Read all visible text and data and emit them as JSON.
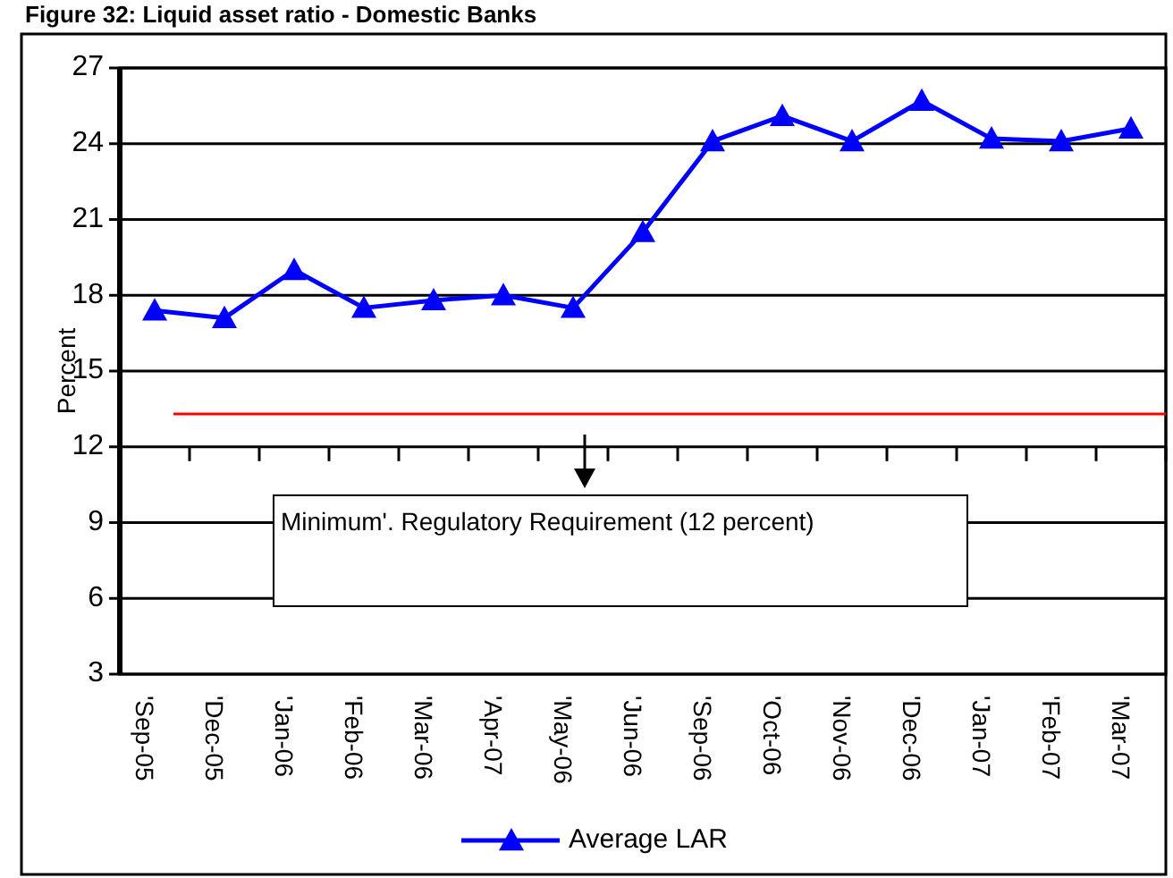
{
  "chart_data": {
    "type": "line",
    "title": "Figure 32: Liquid asset ratio - Domestic Banks",
    "ylabel": "Percent",
    "categories": [
      "'Sep-05",
      "'Dec-05",
      "'Jan-06",
      "'Feb-06",
      "'Mar-06",
      "'Apr-07",
      "'May-06",
      "'Jun-06",
      "'Sep-06",
      "'Oct-06",
      "'Nov-06",
      "'Dec-06",
      "'Jan-07",
      "'Feb-07",
      "'Mar-07"
    ],
    "series": [
      {
        "name": "Average LAR",
        "color": "#0000ff",
        "values": [
          17.4,
          17.1,
          19.0,
          17.5,
          17.8,
          18.0,
          17.5,
          20.5,
          24.1,
          25.1,
          24.1,
          25.7,
          24.2,
          24.1,
          24.6
        ]
      }
    ],
    "ylim": [
      3,
      27
    ],
    "yticks": [
      3,
      6,
      9,
      12,
      15,
      18,
      21,
      24,
      27
    ],
    "grid": "y",
    "marker": "triangle",
    "line_style": "solid",
    "legend": "bottom",
    "ref_lines": [
      {
        "axis": "y",
        "value": 13.3,
        "color": "#ff0000"
      }
    ],
    "annotations": [
      "Minimum'. Regulatory Requirement (12 percent)"
    ]
  }
}
